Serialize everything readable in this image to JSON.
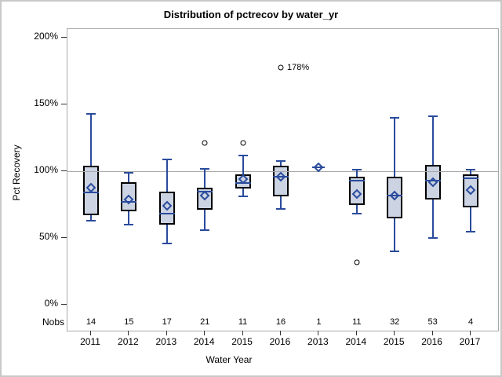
{
  "chart_data": {
    "type": "box",
    "title": "Distribution of pctrecov by water_yr",
    "xlabel": "Water Year",
    "ylabel": "Pct Recovery",
    "nobs_label": "Nobs",
    "y_ticks": [
      {
        "value": 0,
        "label": "0%"
      },
      {
        "value": 50,
        "label": "50%"
      },
      {
        "value": 100,
        "label": "100%"
      },
      {
        "value": 150,
        "label": "150%"
      },
      {
        "value": 200,
        "label": "200%"
      }
    ],
    "ylim": [
      -19.4,
      206.6
    ],
    "reference_line": 100,
    "grid": "off",
    "legend": "none",
    "categories": [
      "2011",
      "2012",
      "2013",
      "2014",
      "2015",
      "2016",
      "2013",
      "2014",
      "2015",
      "2016",
      "2017"
    ],
    "series": [
      {
        "year": "2011",
        "nobs": "14",
        "whisker_low": 63,
        "q1": 67,
        "median": 84,
        "mean": 88,
        "q3": 104,
        "whisker_high": 143,
        "outliers": [],
        "outlier_labels": []
      },
      {
        "year": "2012",
        "nobs": "15",
        "whisker_low": 60,
        "q1": 70,
        "median": 77,
        "mean": 79,
        "q3": 92,
        "whisker_high": 99,
        "outliers": [],
        "outlier_labels": []
      },
      {
        "year": "2013",
        "nobs": "17",
        "whisker_low": 46,
        "q1": 60,
        "median": 68,
        "mean": 74,
        "q3": 85,
        "whisker_high": 109,
        "outliers": [],
        "outlier_labels": []
      },
      {
        "year": "2014",
        "nobs": "21",
        "whisker_low": 56,
        "q1": 71,
        "median": 85,
        "mean": 82,
        "q3": 88,
        "whisker_high": 102,
        "outliers": [
          121
        ],
        "outlier_labels": [
          ""
        ]
      },
      {
        "year": "2015",
        "nobs": "11",
        "whisker_low": 81,
        "q1": 87,
        "median": 91,
        "mean": 94,
        "q3": 98,
        "whisker_high": 112,
        "outliers": [
          121
        ],
        "outlier_labels": [
          ""
        ]
      },
      {
        "year": "2016",
        "nobs": "16",
        "whisker_low": 72,
        "q1": 81,
        "median": 96,
        "mean": 96,
        "q3": 104,
        "whisker_high": 108,
        "outliers": [
          178
        ],
        "outlier_labels": [
          "178%"
        ]
      },
      {
        "year": "2013",
        "nobs": "1",
        "single_value": 103,
        "mean": 103,
        "median": 103,
        "outliers": [],
        "outlier_labels": []
      },
      {
        "year": "2014",
        "nobs": "11",
        "whisker_low": 68,
        "q1": 75,
        "median": 93,
        "mean": 83,
        "q3": 96,
        "whisker_high": 101,
        "outliers": [
          32
        ],
        "outlier_labels": [
          ""
        ]
      },
      {
        "year": "2015",
        "nobs": "32",
        "whisker_low": 40,
        "q1": 65,
        "median": 82,
        "mean": 82,
        "q3": 96,
        "whisker_high": 140,
        "outliers": [],
        "outlier_labels": []
      },
      {
        "year": "2016",
        "nobs": "53",
        "whisker_low": 50,
        "q1": 79,
        "median": 93,
        "mean": 92,
        "q3": 105,
        "whisker_high": 141,
        "outliers": [],
        "outlier_labels": []
      },
      {
        "year": "2017",
        "nobs": "4",
        "whisker_low": 55,
        "q1": 73,
        "median": 95,
        "mean": 86,
        "q3": 98,
        "whisker_high": 101,
        "outliers": [],
        "outlier_labels": []
      }
    ],
    "colors": {
      "box_fill": "#ccd4e3",
      "box_border": "#000000",
      "line_blue": "#2a4b9c",
      "reference_line": "#a8a8a8",
      "plot_border": "#a9a9a9",
      "figure_border": "#c8c8c8",
      "tick": "#333333",
      "text": "#000000"
    }
  }
}
